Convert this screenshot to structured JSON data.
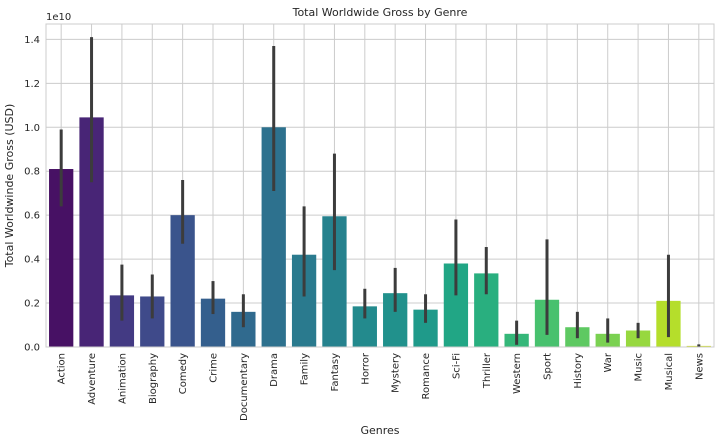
{
  "chart_data": {
    "type": "bar",
    "title": "Total Worldwide Gross by Genre",
    "xlabel": "Genres",
    "ylabel": "Total Worldwinde Gross (USD)",
    "offset_label": "1e10",
    "ylim": [
      0,
      1.47
    ],
    "yticks": [
      "0.0",
      "0.2",
      "0.4",
      "0.6",
      "0.8",
      "1.0",
      "1.2",
      "1.4"
    ],
    "grid": true,
    "categories": [
      "Action",
      "Adventure",
      "Animation",
      "Biography",
      "Comedy",
      "Crime",
      "Documentary",
      "Drama",
      "Family",
      "Fantasy",
      "Horror",
      "Mystery",
      "Romance",
      "Sci-Fi",
      "Thriller",
      "Western",
      "Sport",
      "History",
      "War",
      "Music",
      "Musical",
      "News"
    ],
    "values": [
      0.81,
      1.045,
      0.235,
      0.23,
      0.6,
      0.22,
      0.16,
      1.0,
      0.42,
      0.595,
      0.185,
      0.245,
      0.17,
      0.38,
      0.335,
      0.06,
      0.215,
      0.09,
      0.06,
      0.075,
      0.21,
      0.005
    ],
    "error_low": [
      0.64,
      0.75,
      0.12,
      0.13,
      0.47,
      0.15,
      0.09,
      0.71,
      0.23,
      0.35,
      0.13,
      0.16,
      0.11,
      0.235,
      0.24,
      0.01,
      0.055,
      0.04,
      0.02,
      0.04,
      0.045,
      0.0
    ],
    "error_high": [
      0.99,
      1.41,
      0.375,
      0.33,
      0.76,
      0.3,
      0.24,
      1.37,
      0.64,
      0.88,
      0.265,
      0.36,
      0.24,
      0.58,
      0.455,
      0.12,
      0.49,
      0.16,
      0.13,
      0.11,
      0.42,
      0.012
    ],
    "colors": [
      "#471164",
      "#482576",
      "#433a83",
      "#3f4a8a",
      "#3a548c",
      "#345f8d",
      "#306a8e",
      "#2d718e",
      "#2a7a8e",
      "#26828e",
      "#238a8d",
      "#21918c",
      "#1f9a8a",
      "#21a685",
      "#29af7f",
      "#35b779",
      "#48c16e",
      "#5ec962",
      "#7ad151",
      "#97d83f",
      "#b5de2b",
      "#d2e21b"
    ]
  }
}
